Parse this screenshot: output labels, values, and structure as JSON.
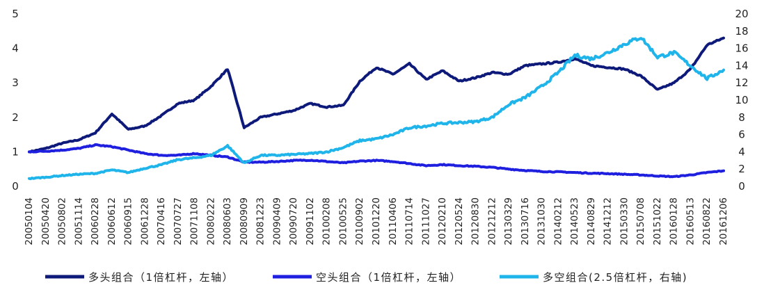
{
  "chart_data": {
    "type": "line",
    "title": "",
    "xlabel": "",
    "ylabel_left": "",
    "ylabel_right": "",
    "y_left_lim": [
      0,
      5
    ],
    "y_left_ticks": [
      "0",
      "1",
      "2",
      "3",
      "4",
      "5"
    ],
    "y_right_lim": [
      0,
      20
    ],
    "y_right_ticks": [
      "0",
      "2",
      "4",
      "6",
      "8",
      "10",
      "12",
      "14",
      "16",
      "18",
      "20"
    ],
    "grid": false,
    "legend_position": "bottom",
    "x_ticks": [
      "20050104",
      "20050420",
      "20050802",
      "20051114",
      "20060228",
      "20060612",
      "20060915",
      "20061228",
      "20070416",
      "20070727",
      "20071108",
      "20080222",
      "20080603",
      "20080909",
      "20081223",
      "20090409",
      "20090720",
      "20091102",
      "20100208",
      "20100525",
      "20100902",
      "20101220",
      "20110406",
      "20110714",
      "20111027",
      "20120210",
      "20120524",
      "20120830",
      "20121212",
      "20130329",
      "20130716",
      "20131030",
      "20140212",
      "20140523",
      "20140829",
      "20141212",
      "20150330",
      "20150708",
      "20151022",
      "20160128",
      "20160513",
      "20160822",
      "20161206"
    ],
    "series": [
      {
        "name": "多头组合（1倍杠杆，左轴）",
        "axis": "left",
        "color": "#0e1a7a",
        "values": [
          1.0,
          1.1,
          1.25,
          1.35,
          1.55,
          2.1,
          1.65,
          1.75,
          2.05,
          2.4,
          2.5,
          2.9,
          3.4,
          1.7,
          2.0,
          2.1,
          2.2,
          2.4,
          2.3,
          2.35,
          3.05,
          3.45,
          3.25,
          3.55,
          3.1,
          3.35,
          3.05,
          3.15,
          3.3,
          3.25,
          3.5,
          3.55,
          3.6,
          3.7,
          3.5,
          3.45,
          3.4,
          3.2,
          2.8,
          3.0,
          3.4,
          4.1,
          4.3
        ]
      },
      {
        "name": "空头组合（1倍杠杆，左轴）",
        "axis": "left",
        "color": "#1f1fe0",
        "values": [
          1.0,
          1.02,
          1.05,
          1.1,
          1.2,
          1.15,
          1.05,
          0.95,
          0.9,
          0.9,
          0.95,
          0.9,
          0.85,
          0.7,
          0.7,
          0.72,
          0.75,
          0.76,
          0.72,
          0.68,
          0.73,
          0.75,
          0.72,
          0.66,
          0.6,
          0.63,
          0.6,
          0.58,
          0.55,
          0.5,
          0.46,
          0.43,
          0.42,
          0.4,
          0.38,
          0.37,
          0.35,
          0.33,
          0.3,
          0.28,
          0.33,
          0.4,
          0.45
        ]
      },
      {
        "name": "多空组合(2.5倍杠杆，右轴)",
        "axis": "right",
        "color": "#1fb4ea",
        "values": [
          0.9,
          1.05,
          1.25,
          1.4,
          1.5,
          1.9,
          1.6,
          2.1,
          2.5,
          3.1,
          3.3,
          3.6,
          4.7,
          2.7,
          3.6,
          3.6,
          3.7,
          3.8,
          4.0,
          4.5,
          5.3,
          5.5,
          6.0,
          6.8,
          7.0,
          7.3,
          7.4,
          7.5,
          8.0,
          9.5,
          10.3,
          11.6,
          13.2,
          15.2,
          14.8,
          15.5,
          16.5,
          17.3,
          15.0,
          15.5,
          14.0,
          12.5,
          13.5
        ]
      }
    ]
  }
}
